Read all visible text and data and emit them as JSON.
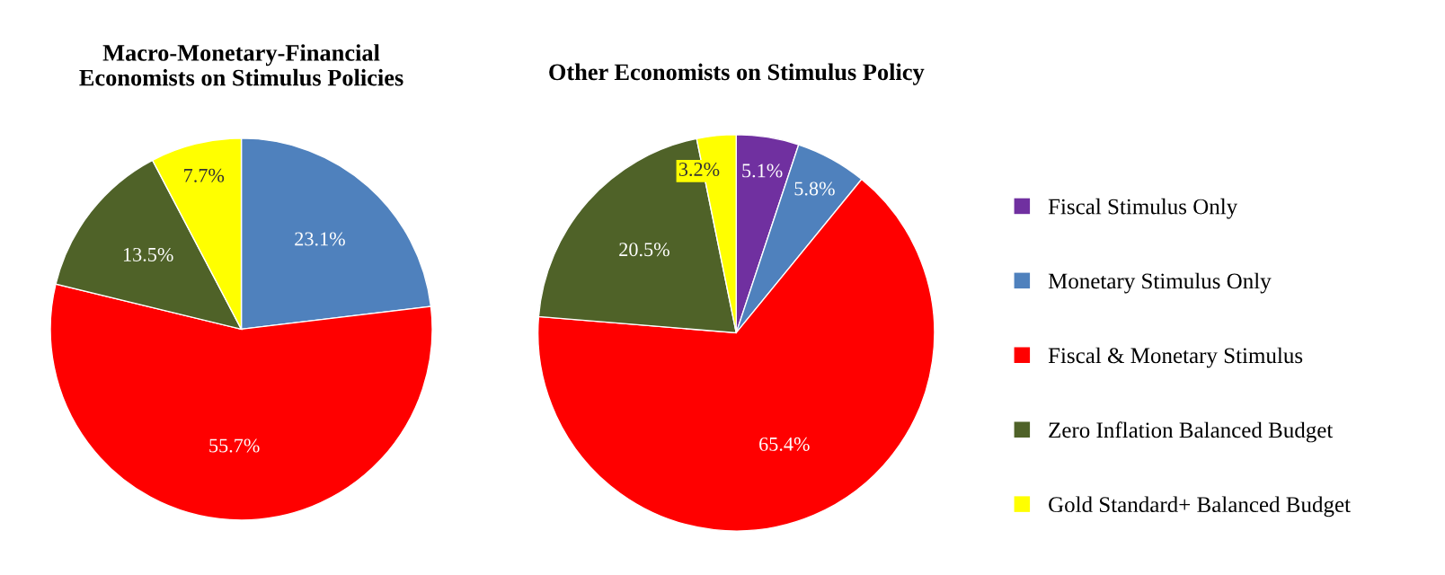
{
  "chart_data": [
    {
      "type": "pie",
      "title": "Macro-Monetary-Financial\nEconomists on Stimulus Policies",
      "categories": [
        null,
        null,
        null,
        null
      ],
      "values": [
        23.1,
        55.7,
        13.5,
        7.7
      ],
      "value_labels": [
        "23.1%",
        "55.7%",
        "13.5%",
        "7.7%"
      ],
      "colors": [
        "#4f81bd",
        "#ff0000",
        "#4f6228",
        "#ffff00"
      ]
    },
    {
      "type": "pie",
      "title": "Other Economists on Stimulus Policy",
      "categories": [
        "Fiscal Stimulus Only",
        "Monetary Stimulus Only",
        "Fiscal & Monetary Stimulus",
        "Zero Inflation Balanced Budget",
        "Gold Standard+ Balanced Budget"
      ],
      "values": [
        5.1,
        5.8,
        65.4,
        20.5,
        3.2
      ],
      "value_labels": [
        "5.1%",
        "5.8%",
        "65.4%",
        "20.5%",
        "3.2%"
      ],
      "colors": [
        "#7030a0",
        "#4f81bd",
        "#ff0000",
        "#4f6228",
        "#ffff00"
      ],
      "legend": "right"
    }
  ]
}
